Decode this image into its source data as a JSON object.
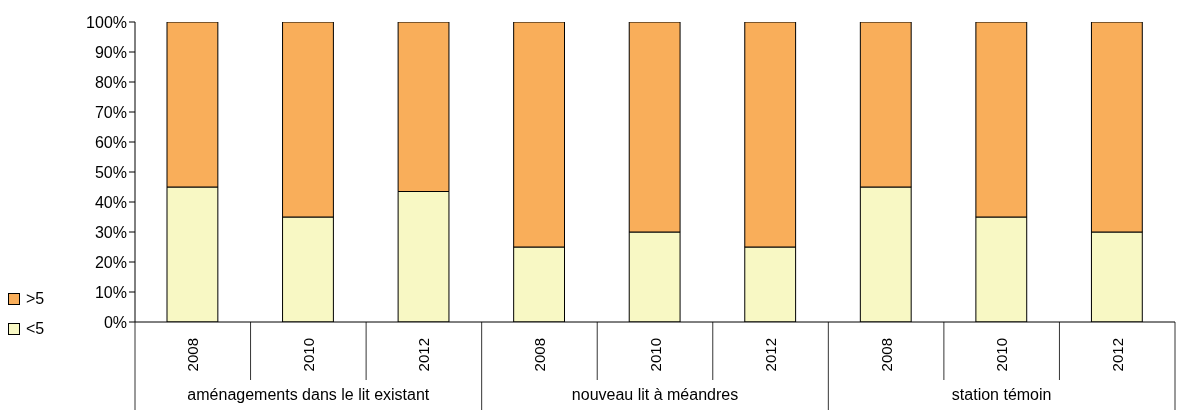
{
  "chart_data": {
    "type": "bar",
    "stacked": true,
    "categories": [
      "2008",
      "2010",
      "2012",
      "2008",
      "2010",
      "2012",
      "2008",
      "2010",
      "2012"
    ],
    "series": [
      {
        "name": "<5",
        "color": "#f8f8c4",
        "values": [
          45,
          35,
          43.5,
          25,
          30,
          25,
          45,
          35,
          30
        ]
      },
      {
        "name": ">5",
        "color": "#f9ae5a",
        "values": [
          55,
          65,
          56.5,
          75,
          70,
          75,
          55,
          65,
          70
        ]
      }
    ],
    "ylim": [
      0,
      100
    ],
    "yticks": [
      {
        "value": 0,
        "label": "0%"
      },
      {
        "value": 10,
        "label": "10%"
      },
      {
        "value": 20,
        "label": "20%"
      },
      {
        "value": 30,
        "label": "30%"
      },
      {
        "value": 40,
        "label": "40%"
      },
      {
        "value": 50,
        "label": "50%"
      },
      {
        "value": 60,
        "label": "60%"
      },
      {
        "value": 70,
        "label": "70%"
      },
      {
        "value": 80,
        "label": "80%"
      },
      {
        "value": 90,
        "label": "90%"
      },
      {
        "value": 100,
        "label": "100%"
      }
    ],
    "legend": "left",
    "annotations": [
      "aménagements dans le lit existant",
      "nouveau lit à méandres",
      "station témoin"
    ]
  }
}
